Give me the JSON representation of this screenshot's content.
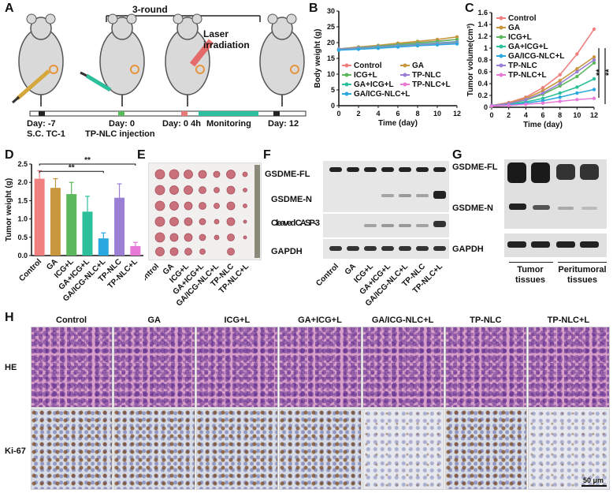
{
  "panels": {
    "A": {
      "label": "A",
      "round": "3-round",
      "laser": "Laser irradiation",
      "day_m7": "Day: -7",
      "sc": "S.C. TC-1",
      "day0": "Day: 0",
      "inj": "TP-NLC injection",
      "day04h": "Day: 0 4h",
      "monitor": "Monitoring",
      "day12": "Day: 12"
    },
    "B": {
      "label": "B"
    },
    "C": {
      "label": "C"
    },
    "D": {
      "label": "D"
    },
    "E": {
      "label": "E",
      "groups": [
        "Control",
        "GA",
        "ICG+L",
        "GA+ICG+L",
        "GA/ICG-NLC+L",
        "TP-NLC",
        "TP-NLC+L"
      ]
    },
    "F": {
      "label": "F",
      "rows": [
        "GSDME-FL",
        "GSDME-N",
        "Cleaved CASP-3",
        "GAPDH"
      ],
      "groups": [
        "Control",
        "GA",
        "ICG+L",
        "GA+ICG+L",
        "GA/ICG-NLC+L",
        "TP-NLC",
        "TP-NLC+L"
      ]
    },
    "G": {
      "label": "G",
      "rows": [
        "GSDME-FL",
        "GSDME-N",
        "GAPDH"
      ],
      "tumor": "Tumor tissues",
      "peri": "Peritumoral tissues"
    },
    "H": {
      "label": "H",
      "cols": [
        "Control",
        "GA",
        "ICG+L",
        "GA+ICG+L",
        "GA/ICG-NLC+L",
        "TP-NLC",
        "TP-NLC+L"
      ],
      "rows": [
        "HE",
        "Ki-67"
      ],
      "scale": "50 μm"
    }
  },
  "colors": {
    "Control": "#f08080",
    "GA": "#c8963c",
    "ICG+L": "#5cb85c",
    "GA+ICG+L": "#2bbf9b",
    "GA/ICG-NLC+L": "#29a8e0",
    "TP-NLC": "#9b7fd4",
    "TP-NLC+L": "#e879d6"
  },
  "chart_data": [
    {
      "panel": "B",
      "type": "line",
      "xlabel": "Time (day)",
      "ylabel": "Body weight (g)",
      "x": [
        0,
        2,
        4,
        6,
        8,
        10,
        12
      ],
      "xlim": [
        0,
        12
      ],
      "ylim": [
        0,
        30
      ],
      "yticks": [
        0,
        5,
        10,
        15,
        20,
        25,
        30
      ],
      "series": [
        {
          "name": "Control",
          "values": [
            18,
            18.5,
            19,
            19.5,
            20,
            20.5,
            21
          ]
        },
        {
          "name": "GA",
          "values": [
            18,
            18.6,
            19.1,
            19.8,
            20.4,
            21,
            21.8
          ]
        },
        {
          "name": "ICG+L",
          "values": [
            18,
            18.4,
            18.9,
            19.4,
            19.9,
            20.4,
            21
          ]
        },
        {
          "name": "TP-NLC",
          "values": [
            18,
            18.3,
            18.7,
            19.1,
            19.5,
            19.9,
            20.3
          ]
        },
        {
          "name": "GA+ICG+L",
          "values": [
            17.8,
            18.1,
            18.5,
            18.9,
            19.3,
            19.7,
            20.1
          ]
        },
        {
          "name": "TP-NLC+L",
          "values": [
            17.7,
            18,
            18.3,
            18.7,
            19.1,
            19.5,
            19.8
          ]
        },
        {
          "name": "GA/ICG-NLC+L",
          "values": [
            17.6,
            17.9,
            18.2,
            18.6,
            19,
            19.3,
            19.6
          ]
        }
      ]
    },
    {
      "panel": "C",
      "type": "line",
      "xlabel": "Time (day)",
      "ylabel": "Tumor volume(cm³)",
      "x": [
        0,
        2,
        4,
        6,
        8,
        10,
        12
      ],
      "xlim": [
        0,
        12
      ],
      "ylim": [
        0,
        1.6
      ],
      "yticks": [
        0.0,
        0.2,
        0.4,
        0.6,
        0.8,
        1.0,
        1.2,
        1.4,
        1.6
      ],
      "annotations": [
        "**",
        "**"
      ],
      "series": [
        {
          "name": "Control",
          "values": [
            0.03,
            0.08,
            0.17,
            0.33,
            0.55,
            0.9,
            1.32
          ]
        },
        {
          "name": "GA",
          "values": [
            0.03,
            0.07,
            0.15,
            0.28,
            0.45,
            0.65,
            0.85
          ]
        },
        {
          "name": "ICG+L",
          "values": [
            0.03,
            0.06,
            0.12,
            0.22,
            0.36,
            0.52,
            0.75
          ]
        },
        {
          "name": "GA+ICG+L",
          "values": [
            0.03,
            0.05,
            0.09,
            0.15,
            0.24,
            0.34,
            0.48
          ]
        },
        {
          "name": "GA/ICG-NLC+L",
          "values": [
            0.02,
            0.04,
            0.07,
            0.11,
            0.17,
            0.24,
            0.3
          ]
        },
        {
          "name": "TP-NLC",
          "values": [
            0.03,
            0.06,
            0.13,
            0.24,
            0.4,
            0.6,
            0.8
          ]
        },
        {
          "name": "TP-NLC+L",
          "values": [
            0.02,
            0.03,
            0.05,
            0.07,
            0.1,
            0.13,
            0.15
          ]
        }
      ]
    },
    {
      "panel": "D",
      "type": "bar",
      "ylabel": "Tumor weight (g)",
      "categories": [
        "Control",
        "GA",
        "ICG+L",
        "GA+ICG+L",
        "GA/ICG-NLC+L",
        "TP-NLC",
        "TP-NLC+L"
      ],
      "values": [
        2.1,
        1.85,
        1.68,
        1.2,
        0.47,
        1.58,
        0.26
      ],
      "errors": [
        0.22,
        0.25,
        0.32,
        0.42,
        0.15,
        0.38,
        0.1
      ],
      "ylim": [
        0,
        2.5
      ],
      "yticks": [
        0.0,
        0.5,
        1.0,
        1.5,
        2.0,
        2.5
      ],
      "annotations": [
        "**",
        "**"
      ]
    }
  ]
}
